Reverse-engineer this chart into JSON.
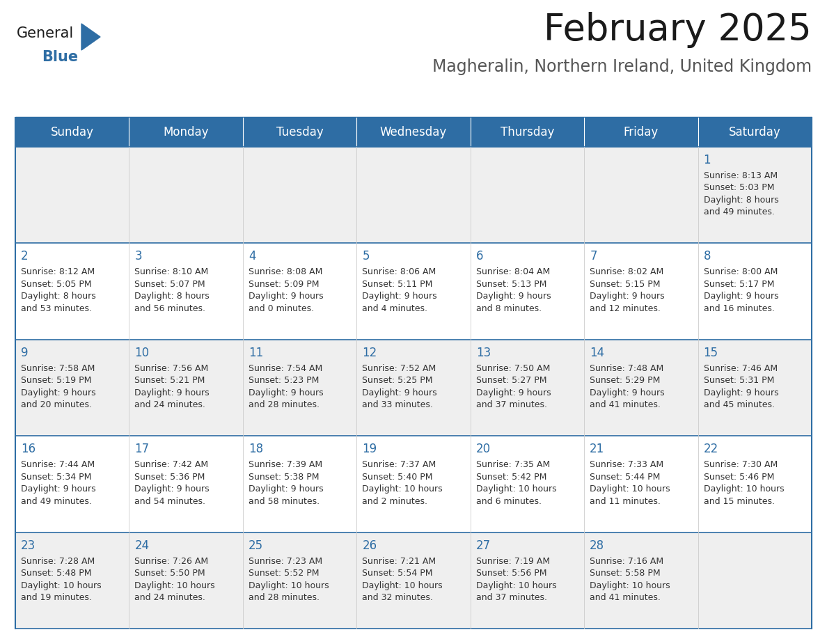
{
  "title": "February 2025",
  "subtitle": "Magheralin, Northern Ireland, United Kingdom",
  "days_of_week": [
    "Sunday",
    "Monday",
    "Tuesday",
    "Wednesday",
    "Thursday",
    "Friday",
    "Saturday"
  ],
  "header_bg": "#2E6DA4",
  "header_text": "#FFFFFF",
  "row_bg_odd": "#EFEFEF",
  "row_bg_even": "#FFFFFF",
  "text_color": "#333333",
  "day_num_color": "#2E6DA4",
  "border_color": "#2E6DA4",
  "calendar_data": [
    [
      {
        "day": null,
        "sunrise": null,
        "sunset": null,
        "daylight1": null,
        "daylight2": null
      },
      {
        "day": null,
        "sunrise": null,
        "sunset": null,
        "daylight1": null,
        "daylight2": null
      },
      {
        "day": null,
        "sunrise": null,
        "sunset": null,
        "daylight1": null,
        "daylight2": null
      },
      {
        "day": null,
        "sunrise": null,
        "sunset": null,
        "daylight1": null,
        "daylight2": null
      },
      {
        "day": null,
        "sunrise": null,
        "sunset": null,
        "daylight1": null,
        "daylight2": null
      },
      {
        "day": null,
        "sunrise": null,
        "sunset": null,
        "daylight1": null,
        "daylight2": null
      },
      {
        "day": 1,
        "sunrise": "8:13 AM",
        "sunset": "5:03 PM",
        "daylight1": "8 hours",
        "daylight2": "and 49 minutes."
      }
    ],
    [
      {
        "day": 2,
        "sunrise": "8:12 AM",
        "sunset": "5:05 PM",
        "daylight1": "8 hours",
        "daylight2": "and 53 minutes."
      },
      {
        "day": 3,
        "sunrise": "8:10 AM",
        "sunset": "5:07 PM",
        "daylight1": "8 hours",
        "daylight2": "and 56 minutes."
      },
      {
        "day": 4,
        "sunrise": "8:08 AM",
        "sunset": "5:09 PM",
        "daylight1": "9 hours",
        "daylight2": "and 0 minutes."
      },
      {
        "day": 5,
        "sunrise": "8:06 AM",
        "sunset": "5:11 PM",
        "daylight1": "9 hours",
        "daylight2": "and 4 minutes."
      },
      {
        "day": 6,
        "sunrise": "8:04 AM",
        "sunset": "5:13 PM",
        "daylight1": "9 hours",
        "daylight2": "and 8 minutes."
      },
      {
        "day": 7,
        "sunrise": "8:02 AM",
        "sunset": "5:15 PM",
        "daylight1": "9 hours",
        "daylight2": "and 12 minutes."
      },
      {
        "day": 8,
        "sunrise": "8:00 AM",
        "sunset": "5:17 PM",
        "daylight1": "9 hours",
        "daylight2": "and 16 minutes."
      }
    ],
    [
      {
        "day": 9,
        "sunrise": "7:58 AM",
        "sunset": "5:19 PM",
        "daylight1": "9 hours",
        "daylight2": "and 20 minutes."
      },
      {
        "day": 10,
        "sunrise": "7:56 AM",
        "sunset": "5:21 PM",
        "daylight1": "9 hours",
        "daylight2": "and 24 minutes."
      },
      {
        "day": 11,
        "sunrise": "7:54 AM",
        "sunset": "5:23 PM",
        "daylight1": "9 hours",
        "daylight2": "and 28 minutes."
      },
      {
        "day": 12,
        "sunrise": "7:52 AM",
        "sunset": "5:25 PM",
        "daylight1": "9 hours",
        "daylight2": "and 33 minutes."
      },
      {
        "day": 13,
        "sunrise": "7:50 AM",
        "sunset": "5:27 PM",
        "daylight1": "9 hours",
        "daylight2": "and 37 minutes."
      },
      {
        "day": 14,
        "sunrise": "7:48 AM",
        "sunset": "5:29 PM",
        "daylight1": "9 hours",
        "daylight2": "and 41 minutes."
      },
      {
        "day": 15,
        "sunrise": "7:46 AM",
        "sunset": "5:31 PM",
        "daylight1": "9 hours",
        "daylight2": "and 45 minutes."
      }
    ],
    [
      {
        "day": 16,
        "sunrise": "7:44 AM",
        "sunset": "5:34 PM",
        "daylight1": "9 hours",
        "daylight2": "and 49 minutes."
      },
      {
        "day": 17,
        "sunrise": "7:42 AM",
        "sunset": "5:36 PM",
        "daylight1": "9 hours",
        "daylight2": "and 54 minutes."
      },
      {
        "day": 18,
        "sunrise": "7:39 AM",
        "sunset": "5:38 PM",
        "daylight1": "9 hours",
        "daylight2": "and 58 minutes."
      },
      {
        "day": 19,
        "sunrise": "7:37 AM",
        "sunset": "5:40 PM",
        "daylight1": "10 hours",
        "daylight2": "and 2 minutes."
      },
      {
        "day": 20,
        "sunrise": "7:35 AM",
        "sunset": "5:42 PM",
        "daylight1": "10 hours",
        "daylight2": "and 6 minutes."
      },
      {
        "day": 21,
        "sunrise": "7:33 AM",
        "sunset": "5:44 PM",
        "daylight1": "10 hours",
        "daylight2": "and 11 minutes."
      },
      {
        "day": 22,
        "sunrise": "7:30 AM",
        "sunset": "5:46 PM",
        "daylight1": "10 hours",
        "daylight2": "and 15 minutes."
      }
    ],
    [
      {
        "day": 23,
        "sunrise": "7:28 AM",
        "sunset": "5:48 PM",
        "daylight1": "10 hours",
        "daylight2": "and 19 minutes."
      },
      {
        "day": 24,
        "sunrise": "7:26 AM",
        "sunset": "5:50 PM",
        "daylight1": "10 hours",
        "daylight2": "and 24 minutes."
      },
      {
        "day": 25,
        "sunrise": "7:23 AM",
        "sunset": "5:52 PM",
        "daylight1": "10 hours",
        "daylight2": "and 28 minutes."
      },
      {
        "day": 26,
        "sunrise": "7:21 AM",
        "sunset": "5:54 PM",
        "daylight1": "10 hours",
        "daylight2": "and 32 minutes."
      },
      {
        "day": 27,
        "sunrise": "7:19 AM",
        "sunset": "5:56 PM",
        "daylight1": "10 hours",
        "daylight2": "and 37 minutes."
      },
      {
        "day": 28,
        "sunrise": "7:16 AM",
        "sunset": "5:58 PM",
        "daylight1": "10 hours",
        "daylight2": "and 41 minutes."
      },
      {
        "day": null,
        "sunrise": null,
        "sunset": null,
        "daylight1": null,
        "daylight2": null
      }
    ]
  ],
  "figsize": [
    11.88,
    9.18
  ],
  "dpi": 100,
  "title_fontsize": 38,
  "subtitle_fontsize": 17,
  "header_fontsize": 12,
  "day_num_fontsize": 12,
  "cell_text_fontsize": 9
}
